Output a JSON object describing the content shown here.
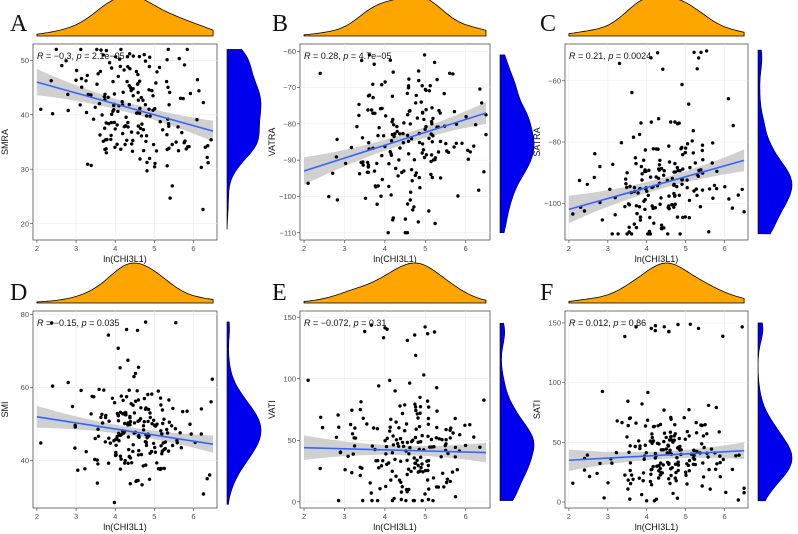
{
  "figure": {
    "point_color": "#000000",
    "fit_line_color": "#3366ff",
    "ci_band_color": "#c0c0c0",
    "top_density_color": "#ffa500",
    "right_density_color": "#0000ee"
  },
  "chart_data": [
    {
      "panel": "A",
      "type": "scatter",
      "xlabel": "ln(CHI3L1)",
      "ylabel": "SMRA",
      "r_label": "R",
      "r_value": "−0.3",
      "p_label": "p",
      "p_value": "2.1e−05",
      "xlim": [
        1.9,
        6.6
      ],
      "ylim": [
        17,
        53
      ],
      "xticks": [
        2,
        3,
        4,
        5,
        6
      ],
      "yticks": [
        20,
        30,
        40,
        50
      ],
      "fit": {
        "x": [
          2.0,
          6.5
        ],
        "y": [
          46.0,
          37.0
        ],
        "ci_end": 2.4,
        "ci_mid": 0.9
      },
      "y_dist": {
        "mean": 41,
        "sd": 6,
        "min": 19,
        "max": 52
      },
      "n": 190,
      "seed": 11
    },
    {
      "panel": "B",
      "type": "scatter",
      "xlabel": "ln(CHI3L1)",
      "ylabel": "VATRA",
      "r_label": "R",
      "r_value": "0.28",
      "p_label": "p",
      "p_value": "4.7e−05",
      "xlim": [
        1.9,
        6.6
      ],
      "ylim": [
        -112,
        -58
      ],
      "xticks": [
        2,
        3,
        4,
        5,
        6
      ],
      "yticks": [
        -110,
        -100,
        -90,
        -80,
        -70,
        -60
      ],
      "fit": {
        "x": [
          2.0,
          6.5
        ],
        "y": [
          -93.0,
          -77.0
        ],
        "ci_end": 3.8,
        "ci_mid": 1.4
      },
      "y_dist": {
        "mean": -86,
        "sd": 12,
        "min": -110,
        "max": -61
      },
      "n": 190,
      "seed": 23
    },
    {
      "panel": "C",
      "type": "scatter",
      "xlabel": "ln(CHI3L1)",
      "ylabel": "SATRA",
      "r_label": "R",
      "r_value": "0.21",
      "p_label": "p",
      "p_value": "0.0024",
      "xlim": [
        1.9,
        6.6
      ],
      "ylim": [
        -112,
        -48
      ],
      "xticks": [
        2,
        3,
        4,
        5,
        6
      ],
      "yticks": [
        -100,
        -80,
        -60
      ],
      "fit": {
        "x": [
          2.0,
          6.5
        ],
        "y": [
          -102.0,
          -86.0
        ],
        "ci_end": 4.5,
        "ci_mid": 1.7
      },
      "y_dist": {
        "mean": -94,
        "sd": 11,
        "min": -110,
        "max": -50
      },
      "n": 190,
      "seed": 37
    },
    {
      "panel": "D",
      "type": "scatter",
      "xlabel": "ln(CHI3L1)",
      "ylabel": "SMI",
      "r_label": "R",
      "r_value": "−0.15",
      "p_label": "p",
      "p_value": "0.035",
      "xlim": [
        1.9,
        6.6
      ],
      "ylim": [
        27,
        81
      ],
      "xticks": [
        2,
        3,
        4,
        5,
        6
      ],
      "yticks": [
        40,
        60,
        80
      ],
      "fit": {
        "x": [
          2.0,
          6.5
        ],
        "y": [
          52.0,
          44.5
        ],
        "ci_end": 3.0,
        "ci_mid": 1.1
      },
      "y_dist": {
        "mean": 48,
        "sd": 8,
        "min": 28,
        "max": 78
      },
      "n": 200,
      "seed": 41
    },
    {
      "panel": "E",
      "type": "scatter",
      "xlabel": "ln(CHI3L1)",
      "ylabel": "VATI",
      "r_label": "R",
      "r_value": "−0.072",
      "p_label": "p",
      "p_value": "0.31",
      "xlim": [
        1.9,
        6.6
      ],
      "ylim": [
        -5,
        155
      ],
      "xticks": [
        2,
        3,
        4,
        5,
        6
      ],
      "yticks": [
        0,
        50,
        100,
        150
      ],
      "fit": {
        "x": [
          2.0,
          6.5
        ],
        "y": [
          44.0,
          40.0
        ],
        "ci_end": 10.0,
        "ci_mid": 3.8
      },
      "y_dist": {
        "mean": 42,
        "sd": 25,
        "min": 1,
        "max": 145
      },
      "n": 200,
      "seed": 53
    },
    {
      "panel": "F",
      "type": "scatter",
      "xlabel": "ln(CHI3L1)",
      "ylabel": "SATI",
      "r_label": "R",
      "r_value": "0.012",
      "p_label": "p",
      "p_value": "0.86",
      "xlim": [
        1.9,
        6.6
      ],
      "ylim": [
        -5,
        160
      ],
      "xticks": [
        2,
        3,
        4,
        5,
        6
      ],
      "yticks": [
        0,
        50,
        100,
        150
      ],
      "fit": {
        "x": [
          2.0,
          6.5
        ],
        "y": [
          35.0,
          43.0
        ],
        "ci_end": 9.0,
        "ci_mid": 3.2
      },
      "y_dist": {
        "mean": 38,
        "sd": 20,
        "min": 1,
        "max": 150
      },
      "n": 200,
      "seed": 67
    }
  ]
}
